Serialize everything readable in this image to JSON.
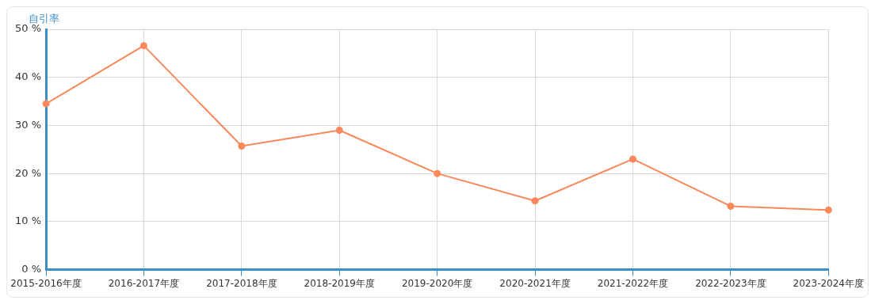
{
  "chart_data": {
    "type": "line",
    "ylabel": "自引率",
    "categories": [
      "2015-2016年度",
      "2016-2017年度",
      "2017-2018年度",
      "2018-2019年度",
      "2019-2020年度",
      "2020-2021年度",
      "2021-2022年度",
      "2022-2023年度",
      "2023-2024年度"
    ],
    "series": [
      {
        "color": "#f9895a",
        "values": [
          34.5,
          46.6,
          25.7,
          29.0,
          20.0,
          14.3,
          23.0,
          13.2,
          12.4
        ]
      }
    ],
    "ylim": [
      0,
      50
    ],
    "yticks": [
      {
        "value": 0,
        "label": "0 %"
      },
      {
        "value": 10,
        "label": "10 %"
      },
      {
        "value": 20,
        "label": "20 %"
      },
      {
        "value": 30,
        "label": "30 %"
      },
      {
        "value": 40,
        "label": "40 %"
      },
      {
        "value": 50,
        "label": "50 %"
      }
    ],
    "grid": true,
    "legend": false,
    "marker": "circle",
    "line_style": "solid"
  }
}
